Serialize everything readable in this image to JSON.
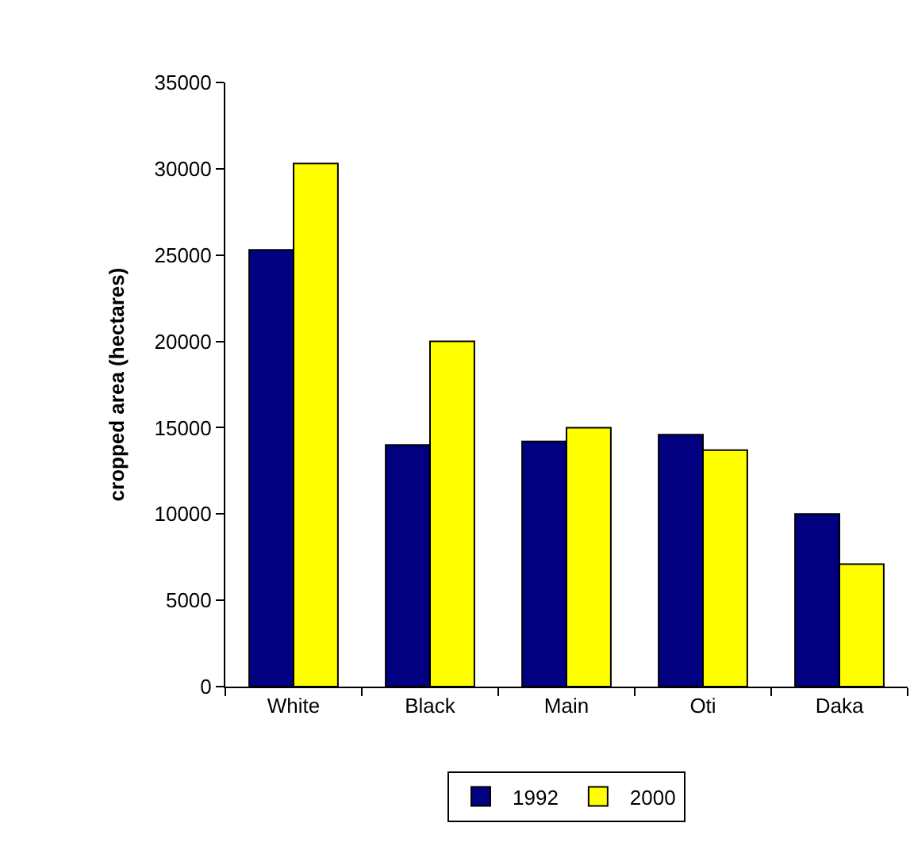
{
  "chart_data": {
    "type": "bar",
    "ylabel": "cropped area (hectares)",
    "categories": [
      "White",
      "Black",
      "Main",
      "Oti",
      "Daka"
    ],
    "series": [
      {
        "name": "1992",
        "color": "#000080",
        "values": [
          25300,
          14000,
          14200,
          14600,
          10000
        ]
      },
      {
        "name": "2000",
        "color": "#ffff00",
        "values": [
          30300,
          20000,
          15000,
          13700,
          7100
        ]
      }
    ],
    "ylim": [
      0,
      35000
    ],
    "yticks": [
      0,
      5000,
      10000,
      15000,
      20000,
      25000,
      30000,
      35000
    ],
    "legend": "bottom"
  }
}
